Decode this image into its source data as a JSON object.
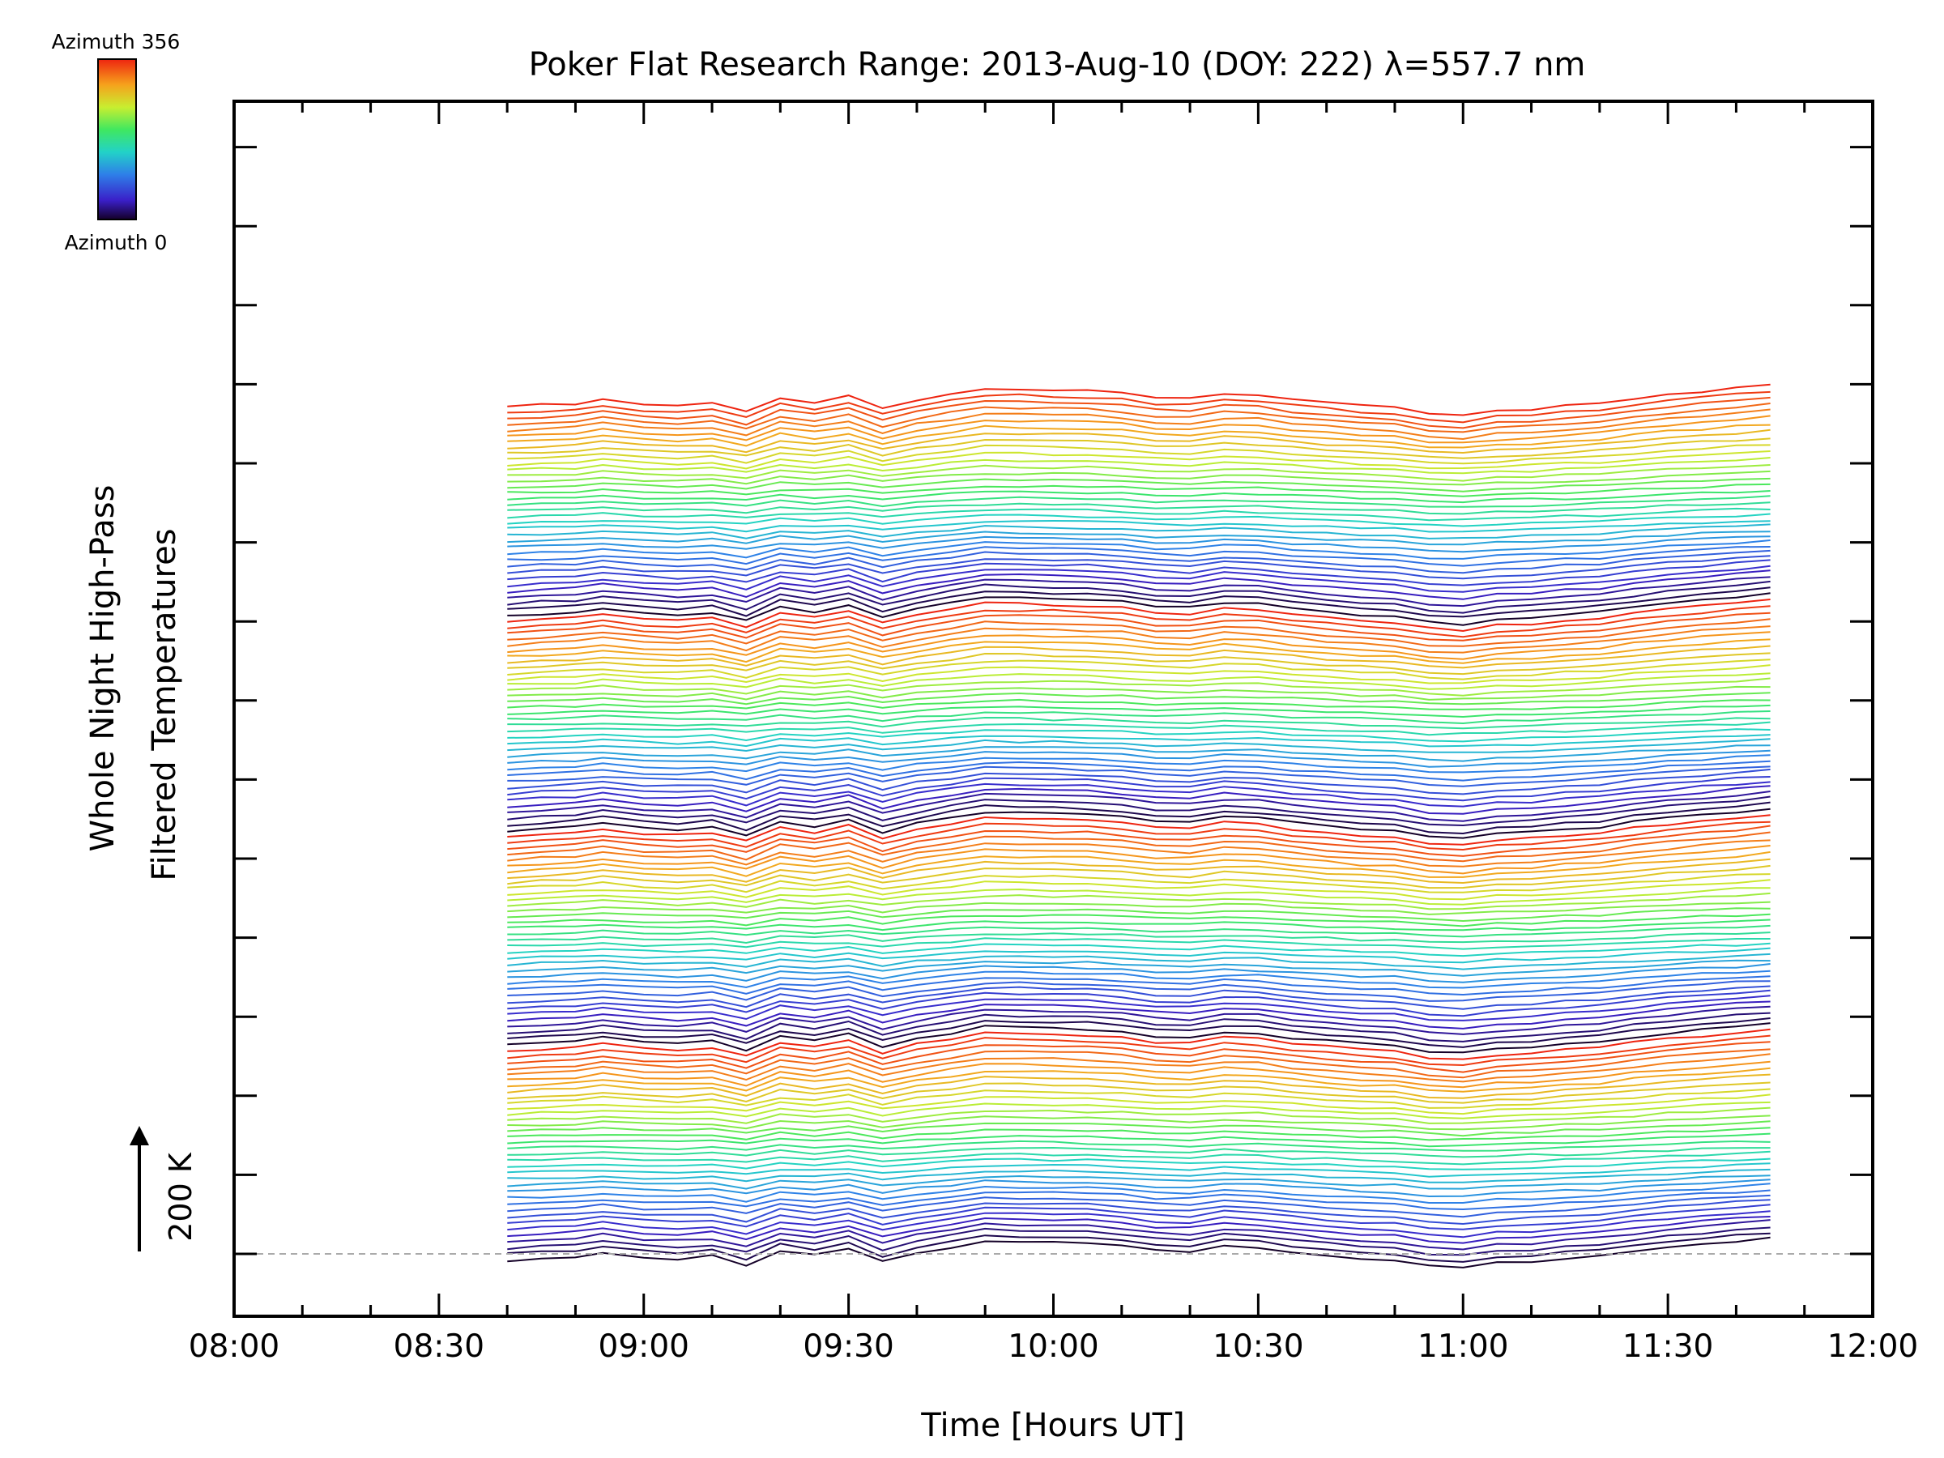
{
  "chart_data": {
    "type": "line",
    "title": "Poker Flat Research Range: 2013-Aug-10 (DOY: 222) λ=557.7 nm",
    "xlabel": "Time [Hours UT]",
    "ylabel_line1": "Whole Night High-Pass",
    "ylabel_line2": "Filtered Temperatures",
    "xlim": [
      8.0,
      12.0
    ],
    "xtick_labels": [
      "08:00",
      "08:30",
      "09:00",
      "09:30",
      "10:00",
      "10:30",
      "11:00",
      "11:30",
      "12:00"
    ],
    "scale_bar_label": "200 K",
    "scale_bar_kelvin": 200,
    "colorbar": {
      "top_label": "Azimuth 356",
      "bottom_label": "Azimuth 0",
      "min": 0,
      "max": 356,
      "colormap": "rainbow"
    },
    "series_count": 144,
    "series_azimuth_cycle": [
      0,
      356
    ],
    "offset_between_series_kelvin": 9.5,
    "x": [
      8.667,
      8.75,
      8.833,
      8.9,
      9.0,
      9.083,
      9.167,
      9.25,
      9.333,
      9.417,
      9.5,
      9.583,
      9.667,
      9.75,
      9.833,
      9.917,
      10.0,
      10.083,
      10.167,
      10.25,
      10.333,
      10.417,
      10.5,
      10.583,
      10.667,
      10.75,
      10.833,
      10.917,
      11.0,
      11.083,
      11.167,
      11.25,
      11.333,
      11.417,
      11.5,
      11.583,
      11.667,
      11.75
    ],
    "base_series": {
      "name": "Azimuth 0 (lowest trace)",
      "values": [
        -8,
        -5,
        -3,
        2,
        -4,
        -6,
        -3,
        -14,
        4,
        -2,
        6,
        -10,
        1,
        8,
        16,
        15,
        14,
        13,
        10,
        4,
        3,
        10,
        8,
        2,
        -2,
        -6,
        -8,
        -16,
        -18,
        -12,
        -10,
        -6,
        -3,
        3,
        8,
        12,
        16,
        20
      ]
    },
    "reference_baseline_kelvin": 0
  },
  "colors": {
    "background": "#ffffff",
    "axes": "#000000",
    "baseline_dashed": "#aaaaaa"
  }
}
